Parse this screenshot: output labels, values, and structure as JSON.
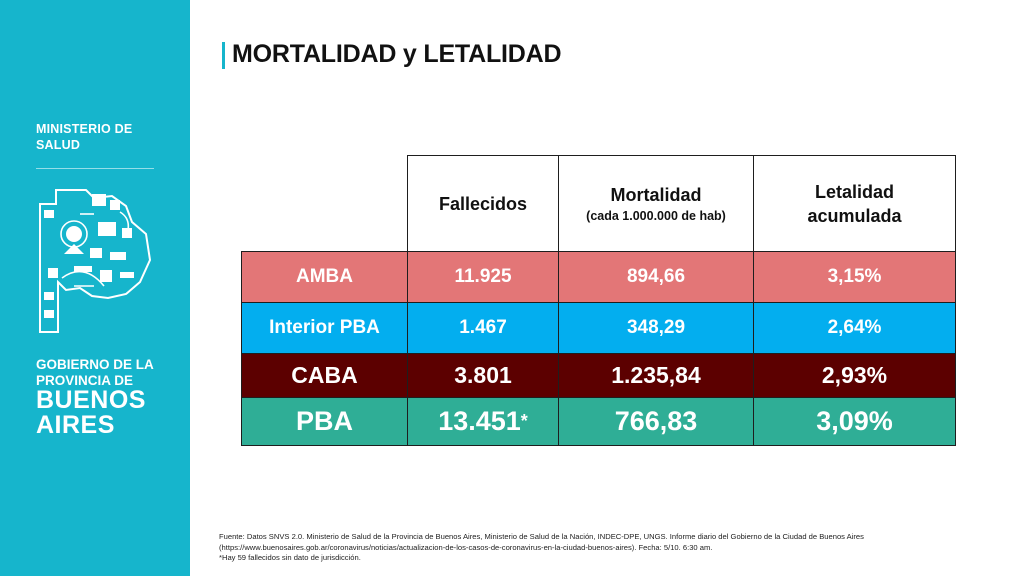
{
  "sidebar": {
    "ministry": "MINISTERIO DE SALUD",
    "gov_line1": "GOBIERNO DE LA",
    "gov_line2": "PROVINCIA DE",
    "gov_big1": "BUENOS",
    "gov_big2": "AIRES",
    "background_color": "#16b5cc"
  },
  "title": "MORTALIDAD y LETALIDAD",
  "table": {
    "headers": {
      "fallecidos": "Fallecidos",
      "mortalidad": "Mortalidad",
      "mortalidad_sub": "(cada 1.000.000 de hab)",
      "letalidad_1": "Letalidad",
      "letalidad_2": "acumulada"
    },
    "rows": [
      {
        "region": "AMBA",
        "fallecidos": "11.925",
        "mortalidad": "894,66",
        "letalidad": "3,15%",
        "color": "#e37677"
      },
      {
        "region": "Interior PBA",
        "fallecidos": "1.467",
        "mortalidad": "348,29",
        "letalidad": "2,64%",
        "color": "#03aeef"
      },
      {
        "region": "CABA",
        "fallecidos": "3.801",
        "mortalidad": "1.235,84",
        "letalidad": "2,93%",
        "color": "#5c0000"
      },
      {
        "region": "PBA",
        "fallecidos": "13.451",
        "fallecidos_mark": "*",
        "mortalidad": "766,83",
        "letalidad": "3,09%",
        "color": "#2fae96"
      }
    ]
  },
  "footnote": {
    "line1": "Fuente: Datos SNVS 2.0. Ministerio de Salud de la Provincia de Buenos Aires, Ministerio de Salud de la Nación, INDEC-DPE, UNGS. Informe diario del Gobierno de la Ciudad de Buenos Aires",
    "line2": "(https://www.buenosaires.gob.ar/coronavirus/noticias/actualizacion-de-los-casos-de-coronavirus-en-la-ciudad-buenos-aires). Fecha: 5/10. 6:30 am.",
    "line3": "*Hay 59 fallecidos sin dato de jurisdicción."
  }
}
